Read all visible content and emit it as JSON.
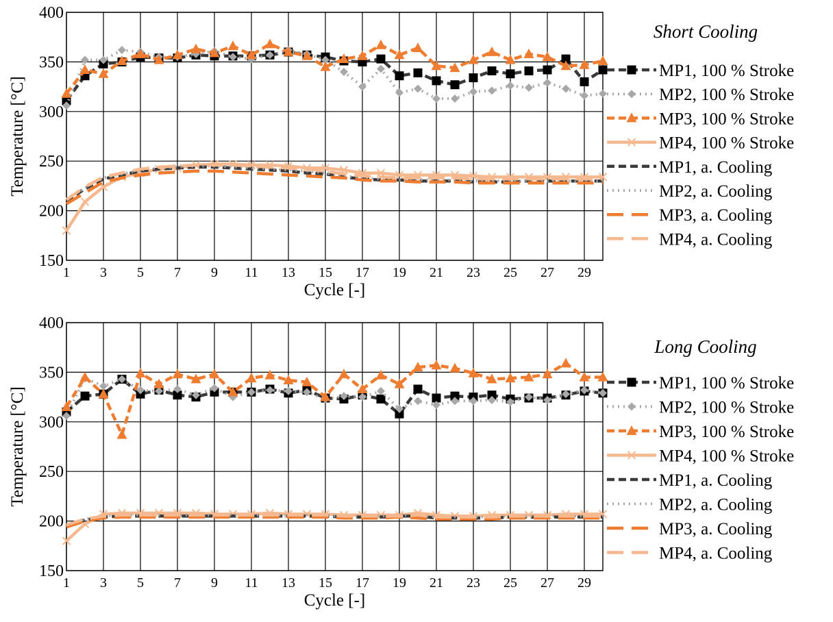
{
  "colors": {
    "MP1": "#3a3a3a",
    "MP2": "#a8a8a8",
    "MP3": "#ee7d31",
    "MP4": "#f5b88f",
    "grid": "#000000"
  },
  "chart_data": [
    {
      "type": "line",
      "title": "Short Cooling",
      "xlabel": "Cycle [-]",
      "ylabel": "Temperature [°C]",
      "xlim": [
        1,
        30
      ],
      "ylim": [
        150,
        400
      ],
      "xticks": [
        1,
        3,
        5,
        7,
        9,
        11,
        13,
        15,
        17,
        19,
        21,
        23,
        25,
        27,
        29
      ],
      "yticks": [
        150,
        200,
        250,
        300,
        350,
        400
      ],
      "grid": true,
      "legend_position": "right",
      "x": [
        1,
        2,
        3,
        4,
        5,
        6,
        7,
        8,
        9,
        10,
        11,
        12,
        13,
        14,
        15,
        16,
        17,
        18,
        19,
        20,
        21,
        22,
        23,
        24,
        25,
        26,
        27,
        28,
        29,
        30
      ],
      "series": [
        {
          "name": "MP1, 100 % Stroke",
          "color_key": "MP1",
          "style": "dashed",
          "marker": "square",
          "values": [
            311,
            336,
            348,
            350,
            355,
            354,
            354,
            357,
            356,
            356,
            356,
            357,
            360,
            357,
            355,
            351,
            350,
            353,
            336,
            339,
            331,
            327,
            334,
            341,
            338,
            341,
            342,
            353,
            330,
            342
          ]
        },
        {
          "name": "MP2, 100 % Stroke",
          "color_key": "MP2",
          "style": "dotted",
          "marker": "diamond",
          "values": [
            306,
            352,
            352,
            362,
            360,
            355,
            355,
            358,
            361,
            355,
            353,
            357,
            362,
            358,
            352,
            340,
            325,
            343,
            319,
            323,
            313,
            313,
            320,
            321,
            326,
            324,
            329,
            323,
            316,
            318
          ]
        },
        {
          "name": "MP3, 100 % Stroke",
          "color_key": "MP3",
          "style": "dashed",
          "marker": "triangle",
          "values": [
            318,
            342,
            338,
            351,
            358,
            352,
            357,
            363,
            359,
            366,
            357,
            368,
            360,
            356,
            345,
            353,
            356,
            367,
            357,
            364,
            346,
            344,
            352,
            360,
            352,
            358,
            355,
            346,
            347,
            351
          ]
        },
        {
          "name": "MP4, 100 % Stroke",
          "color_key": "MP4",
          "style": "solid",
          "marker": "x",
          "values": [
            180,
            209,
            224,
            234,
            238,
            242,
            243,
            246,
            247,
            247,
            246,
            246,
            245,
            243,
            243,
            241,
            238,
            238,
            236,
            236,
            236,
            236,
            235,
            234,
            234,
            234,
            234,
            234,
            234,
            234
          ]
        },
        {
          "name": "MP1, a. Cooling",
          "color_key": "MP1",
          "style": "dashed",
          "marker": "none",
          "values": [
            210,
            222,
            232,
            236,
            240,
            242,
            243,
            244,
            244,
            243,
            242,
            241,
            240,
            238,
            237,
            234,
            232,
            231,
            231,
            230,
            230,
            230,
            229,
            229,
            229,
            230,
            230,
            230,
            230,
            230
          ]
        },
        {
          "name": "MP2, a. Cooling",
          "color_key": "MP2",
          "style": "dotted",
          "marker": "none",
          "values": [
            212,
            223,
            233,
            237,
            241,
            243,
            244,
            245,
            245,
            244,
            243,
            242,
            241,
            240,
            238,
            235,
            233,
            232,
            231,
            231,
            231,
            231,
            230,
            230,
            230,
            230,
            230,
            230,
            230,
            230
          ]
        },
        {
          "name": "MP3, a. Cooling",
          "color_key": "MP3",
          "style": "longdash",
          "marker": "none",
          "values": [
            207,
            218,
            229,
            233,
            236,
            238,
            239,
            240,
            240,
            239,
            238,
            237,
            236,
            235,
            234,
            233,
            231,
            230,
            230,
            229,
            229,
            229,
            228,
            228,
            228,
            228,
            228,
            228,
            228,
            228
          ]
        },
        {
          "name": "MP4, a. Cooling",
          "color_key": "MP4",
          "style": "longdash",
          "marker": "none",
          "values": [
            211,
            224,
            234,
            238,
            242,
            244,
            245,
            246,
            246,
            246,
            245,
            244,
            243,
            242,
            240,
            237,
            235,
            234,
            233,
            233,
            233,
            233,
            232,
            232,
            232,
            232,
            232,
            232,
            232,
            232
          ]
        }
      ]
    },
    {
      "type": "line",
      "title": "Long Cooling",
      "xlabel": "Cycle [-]",
      "ylabel": "Temperature [°C]",
      "xlim": [
        1,
        30
      ],
      "ylim": [
        150,
        400
      ],
      "xticks": [
        1,
        3,
        5,
        7,
        9,
        11,
        13,
        15,
        17,
        19,
        21,
        23,
        25,
        27,
        29
      ],
      "yticks": [
        150,
        200,
        250,
        300,
        350,
        400
      ],
      "grid": true,
      "legend_position": "right",
      "x": [
        1,
        2,
        3,
        4,
        5,
        6,
        7,
        8,
        9,
        10,
        11,
        12,
        13,
        14,
        15,
        16,
        17,
        18,
        19,
        20,
        21,
        22,
        23,
        24,
        25,
        26,
        27,
        28,
        29,
        30
      ],
      "series": [
        {
          "name": "MP1, 100 % Stroke",
          "color_key": "MP1",
          "style": "dashed",
          "marker": "square",
          "values": [
            310,
            326,
            328,
            343,
            328,
            332,
            327,
            325,
            330,
            330,
            330,
            333,
            329,
            332,
            324,
            323,
            327,
            323,
            308,
            333,
            324,
            326,
            325,
            327,
            323,
            324,
            324,
            327,
            331,
            329
          ]
        },
        {
          "name": "MP2, 100 % Stroke",
          "color_key": "MP2",
          "style": "dotted",
          "marker": "diamond",
          "values": [
            306,
            344,
            336,
            343,
            332,
            331,
            333,
            327,
            334,
            325,
            330,
            332,
            331,
            330,
            323,
            326,
            325,
            331,
            313,
            321,
            317,
            321,
            321,
            322,
            320,
            325,
            322,
            328,
            332,
            329
          ]
        },
        {
          "name": "MP3, 100 % Stroke",
          "color_key": "MP3",
          "style": "dashed",
          "marker": "triangle",
          "values": [
            315,
            345,
            328,
            287,
            349,
            338,
            348,
            343,
            348,
            330,
            344,
            347,
            342,
            340,
            325,
            348,
            333,
            347,
            338,
            355,
            357,
            354,
            349,
            343,
            344,
            345,
            348,
            359,
            345,
            345
          ]
        },
        {
          "name": "MP4, 100 % Stroke",
          "color_key": "MP4",
          "style": "solid",
          "marker": "x",
          "values": [
            180,
            197,
            207,
            208,
            208,
            208,
            208,
            208,
            207,
            207,
            207,
            208,
            207,
            207,
            207,
            206,
            206,
            206,
            206,
            208,
            206,
            205,
            205,
            206,
            206,
            206,
            206,
            207,
            207,
            207
          ]
        },
        {
          "name": "MP1, a. Cooling",
          "color_key": "MP1",
          "style": "dashed",
          "marker": "none",
          "values": [
            195,
            201,
            204,
            205,
            205,
            205,
            205,
            205,
            205,
            205,
            205,
            205,
            205,
            205,
            205,
            204,
            204,
            204,
            205,
            205,
            203,
            203,
            203,
            203,
            204,
            204,
            204,
            204,
            204,
            204
          ]
        },
        {
          "name": "MP2, a. Cooling",
          "color_key": "MP2",
          "style": "dotted",
          "marker": "none",
          "values": [
            196,
            202,
            205,
            206,
            206,
            206,
            206,
            206,
            206,
            206,
            206,
            206,
            206,
            206,
            206,
            205,
            205,
            205,
            206,
            206,
            204,
            204,
            204,
            204,
            205,
            205,
            205,
            205,
            205,
            205
          ]
        },
        {
          "name": "MP3, a. Cooling",
          "color_key": "MP3",
          "style": "longdash",
          "marker": "none",
          "values": [
            194,
            200,
            203,
            204,
            204,
            204,
            204,
            204,
            204,
            204,
            204,
            204,
            204,
            204,
            204,
            203,
            203,
            203,
            204,
            203,
            202,
            202,
            202,
            202,
            203,
            203,
            203,
            203,
            203,
            203
          ]
        },
        {
          "name": "MP4, a. Cooling",
          "color_key": "MP4",
          "style": "longdash",
          "marker": "none",
          "values": [
            196,
            202,
            205,
            206,
            206,
            206,
            206,
            206,
            206,
            206,
            206,
            206,
            206,
            206,
            206,
            205,
            205,
            205,
            205,
            206,
            204,
            204,
            204,
            204,
            205,
            205,
            205,
            205,
            205,
            205
          ]
        }
      ]
    }
  ]
}
